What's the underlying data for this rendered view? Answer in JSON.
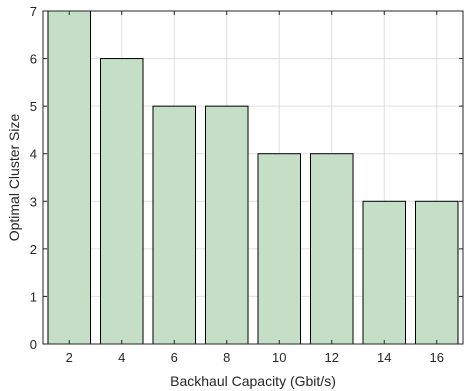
{
  "chart_data": {
    "type": "bar",
    "title": "",
    "xlabel": "Backhaul Capacity (Gbit/s)",
    "ylabel": "Optimal Cluster Size",
    "categories": [
      "2",
      "4",
      "6",
      "8",
      "10",
      "12",
      "14",
      "16"
    ],
    "values": [
      7,
      6,
      5,
      5,
      4,
      4,
      3,
      3
    ],
    "ylim": [
      0,
      7
    ],
    "yticks": [
      "0",
      "1",
      "2",
      "3",
      "4",
      "5",
      "6",
      "7"
    ],
    "grid": true,
    "bar_color": "#c5dfc6",
    "bar_edge_color": "#000000"
  }
}
